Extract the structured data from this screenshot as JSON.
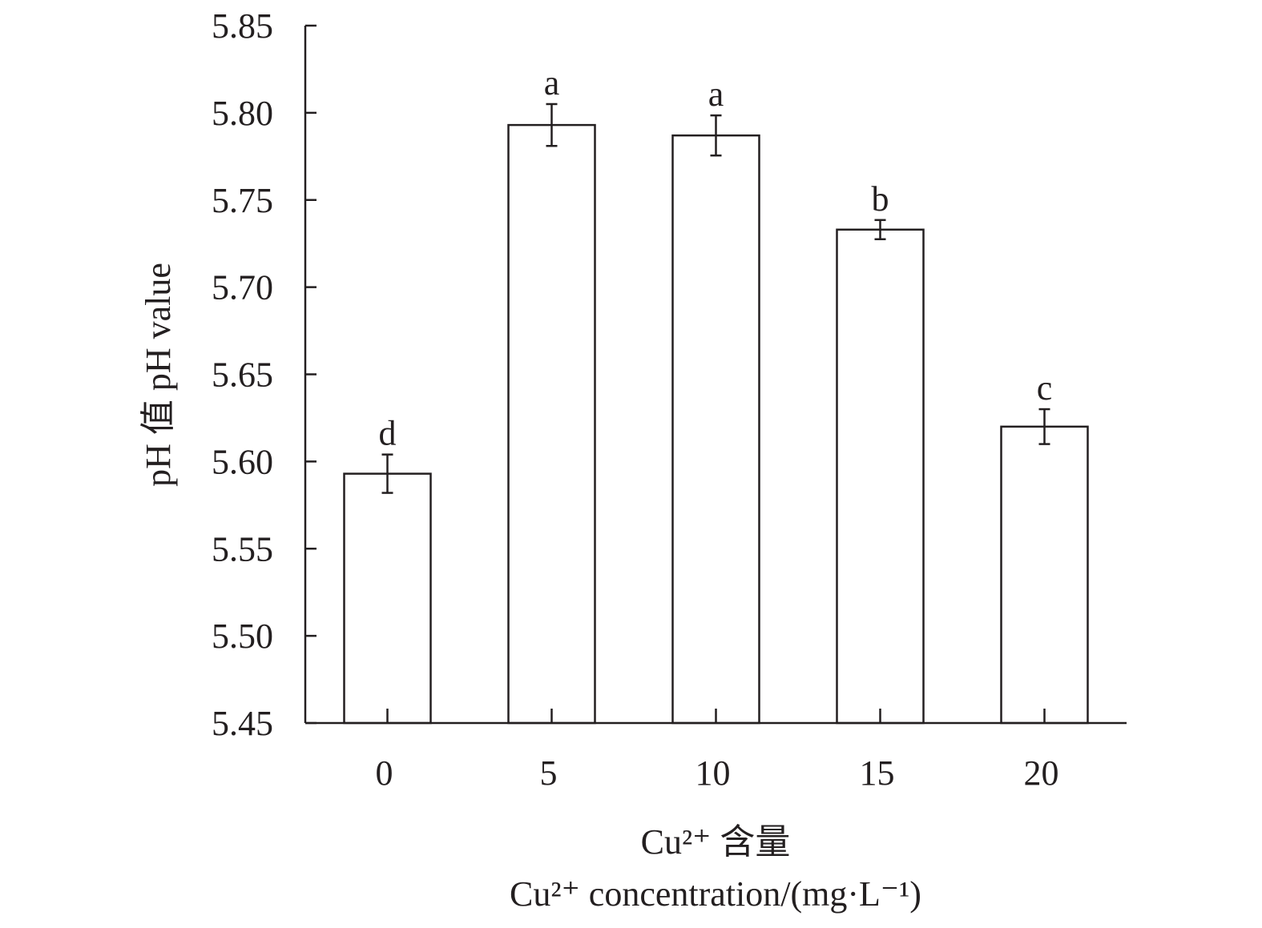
{
  "chart_data": {
    "type": "bar",
    "title": "",
    "categories": [
      "0",
      "5",
      "10",
      "15",
      "20"
    ],
    "values": [
      5.593,
      5.793,
      5.787,
      5.733,
      5.62
    ],
    "errors": [
      0.011,
      0.012,
      0.0115,
      0.0055,
      0.01
    ],
    "significance_letters": [
      "d",
      "a",
      "a",
      "b",
      "c"
    ],
    "ylabel": "pH 值 pH value",
    "xlabel_line1": "Cu²⁺ 含量",
    "xlabel_line2": "Cu²⁺ concentration/(mg·L⁻¹)",
    "ylim": [
      5.45,
      5.85
    ],
    "yticks": [
      "5.45",
      "5.50",
      "5.55",
      "5.60",
      "5.65",
      "5.70",
      "5.75",
      "5.80",
      "5.85"
    ],
    "grid": false,
    "bar_fill": "#ffffff",
    "stroke_color": "#231f20"
  }
}
